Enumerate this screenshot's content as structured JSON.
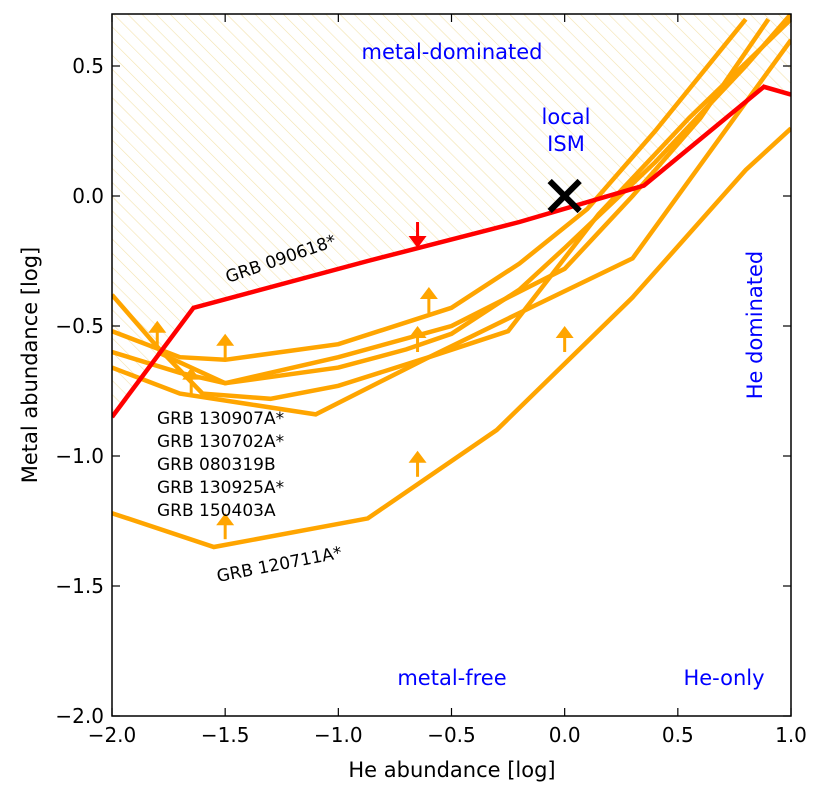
{
  "chart_data": {
    "type": "line",
    "xlabel": "He abundance [log]",
    "ylabel": "Metal abundance [log]",
    "xlim": [
      -2.0,
      1.0
    ],
    "ylim": [
      -2.0,
      0.7
    ],
    "x_ticks": [
      {
        "value": -2.0,
        "label": "−2.0"
      },
      {
        "value": -1.5,
        "label": "−1.5"
      },
      {
        "value": -1.0,
        "label": "−1.0"
      },
      {
        "value": -0.5,
        "label": "−0.5"
      },
      {
        "value": 0.0,
        "label": "0.0"
      },
      {
        "value": 0.5,
        "label": "0.5"
      },
      {
        "value": 1.0,
        "label": "1.0"
      }
    ],
    "y_ticks": [
      {
        "value": -2.0,
        "label": "−2.0"
      },
      {
        "value": -1.5,
        "label": "−1.5"
      },
      {
        "value": -1.0,
        "label": "−1.0"
      },
      {
        "value": -0.5,
        "label": "−0.5"
      },
      {
        "value": 0.0,
        "label": "0.0"
      },
      {
        "value": 0.5,
        "label": "0.5"
      }
    ],
    "colors": {
      "limit": "#ff0000",
      "lower_limit": "#ffa500",
      "ism_marker": "#000000",
      "region_text": "#0000ff",
      "hatch": "#f5e6b8"
    },
    "excluded_region": {
      "boundary_series": "GRB 090618*",
      "hatched": true
    },
    "series": [
      {
        "name": "GRB 090618*",
        "kind": "upper-limit",
        "color": "#ff0000",
        "x": [
          -2.0,
          -1.64,
          -0.87,
          -0.2,
          0.35,
          0.88,
          1.0
        ],
        "y": [
          -0.85,
          -0.43,
          -0.25,
          -0.1,
          0.04,
          0.42,
          0.39
        ],
        "arrows": [
          {
            "x": -0.65,
            "y": -0.1,
            "dir": "down"
          }
        ]
      },
      {
        "name": "GRB 130907A*",
        "kind": "lower-limit",
        "color": "#ffa500",
        "x": [
          -2.0,
          -1.7,
          -1.5,
          -1.0,
          -0.5,
          -0.2,
          0.1,
          0.4,
          0.8
        ],
        "y": [
          -0.52,
          -0.62,
          -0.63,
          -0.57,
          -0.43,
          -0.26,
          -0.05,
          0.25,
          0.68
        ],
        "arrows": [
          {
            "x": -1.8,
            "y": -0.58,
            "dir": "up"
          },
          {
            "x": -1.5,
            "y": -0.63,
            "dir": "up"
          },
          {
            "x": -0.6,
            "y": -0.45,
            "dir": "up"
          }
        ]
      },
      {
        "name": "GRB 130702A*",
        "kind": "lower-limit",
        "color": "#ffa500",
        "x": [
          -2.0,
          -1.7,
          -1.5,
          -1.0,
          -0.5,
          0.0,
          0.3,
          0.6,
          0.9
        ],
        "y": [
          -0.6,
          -0.68,
          -0.72,
          -0.62,
          -0.5,
          -0.28,
          0.0,
          0.3,
          0.68
        ]
      },
      {
        "name": "GRB 080319B",
        "kind": "lower-limit",
        "color": "#ffa500",
        "x": [
          -2.0,
          -1.8,
          -1.6,
          -1.3,
          -1.0,
          -0.6,
          -0.25,
          0.15,
          0.55,
          1.0
        ],
        "y": [
          -0.38,
          -0.58,
          -0.76,
          -0.78,
          -0.73,
          -0.62,
          -0.52,
          -0.07,
          0.3,
          0.68
        ],
        "arrows": [
          {
            "x": -1.65,
            "y": -0.76,
            "dir": "up"
          }
        ]
      },
      {
        "name": "GRB 130925A*",
        "kind": "lower-limit",
        "color": "#ffa500",
        "x": [
          -2.0,
          -1.7,
          -1.4,
          -1.1,
          -0.6,
          -0.2,
          0.3,
          0.7,
          1.0
        ],
        "y": [
          -0.66,
          -0.76,
          -0.8,
          -0.84,
          -0.62,
          -0.45,
          -0.24,
          0.24,
          0.6
        ],
        "arrows": [
          {
            "x": -0.65,
            "y": -0.6,
            "dir": "up"
          }
        ]
      },
      {
        "name": "GRB 150403A",
        "kind": "lower-limit",
        "color": "#ffa500",
        "x": [
          -1.8,
          -1.5,
          -1.0,
          -0.7,
          -0.5,
          -0.2,
          0.0,
          0.4,
          0.8,
          1.0
        ],
        "y": [
          -0.6,
          -0.72,
          -0.66,
          -0.59,
          -0.53,
          -0.36,
          -0.2,
          0.13,
          0.5,
          0.7
        ],
        "arrows": [
          {
            "x": 0.0,
            "y": -0.6,
            "dir": "up"
          }
        ]
      },
      {
        "name": "GRB 120711A*",
        "kind": "lower-limit",
        "color": "#ffa500",
        "x": [
          -2.0,
          -1.55,
          -0.87,
          -0.3,
          0.3,
          0.8,
          1.0
        ],
        "y": [
          -1.22,
          -1.35,
          -1.24,
          -0.9,
          -0.39,
          0.1,
          0.26
        ],
        "arrows": [
          {
            "x": -1.5,
            "y": -1.32,
            "dir": "up"
          },
          {
            "x": -0.65,
            "y": -1.08,
            "dir": "up"
          }
        ]
      }
    ],
    "markers": [
      {
        "name": "local ISM",
        "x": 0.0,
        "y": 0.0,
        "symbol": "x"
      }
    ],
    "annotations": {
      "metal_dominated": "metal-dominated",
      "local_ism_line1": "local",
      "local_ism_line2": "ISM",
      "he_dominated": "He dominated",
      "metal_free": "metal-free",
      "he_only": "He-only",
      "grb_090618": "GRB 090618*",
      "grb_120711a": "GRB 120711A*",
      "grb_group": [
        "GRB 130907A*",
        "GRB 130702A*",
        "GRB 080319B",
        "GRB 130925A*",
        "GRB 150403A"
      ]
    }
  }
}
